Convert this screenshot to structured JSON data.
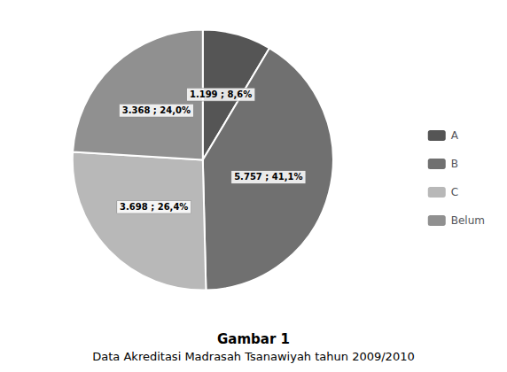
{
  "chart_data": {
    "type": "pie",
    "title": "Gambar 1",
    "subtitle": "Data Akreditasi Madrasah Tsanawiyah tahun 2009/2010",
    "categories": [
      "A",
      "B",
      "C",
      "Belum"
    ],
    "values": [
      1199,
      5757,
      3698,
      3368
    ],
    "value_labels": [
      "1.199 ; 8,6%",
      "5.757 ; 41,1%",
      "3.698 ; 26,4%",
      "3.368 ; 24,0%"
    ],
    "colors": [
      "#555555",
      "#707070",
      "#b8b8b8",
      "#909090"
    ],
    "data_labels": true,
    "legend": "right"
  }
}
